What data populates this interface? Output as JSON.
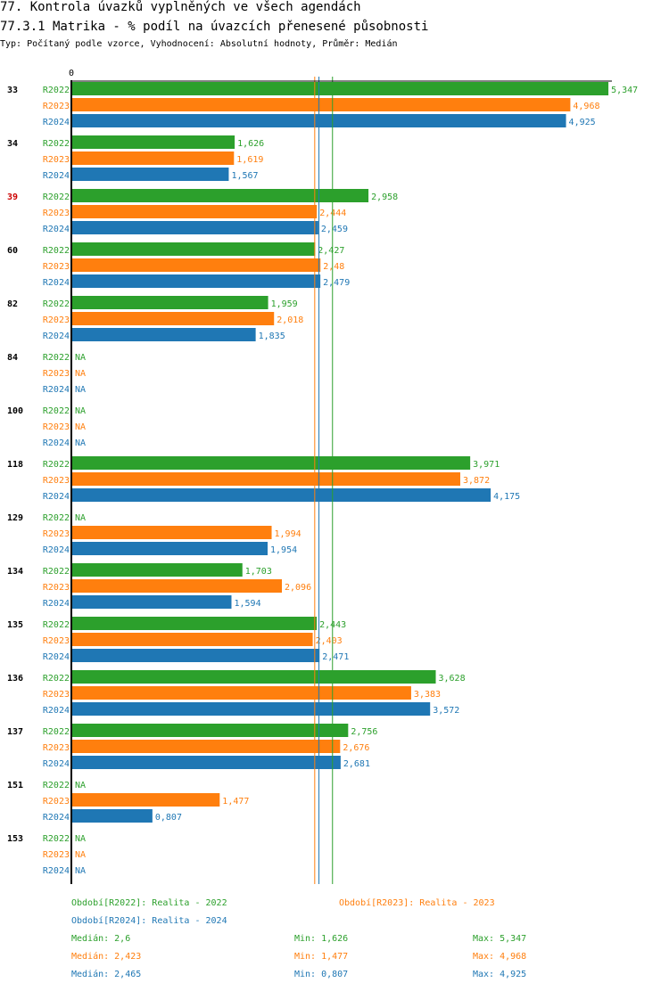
{
  "title": "77. Kontrola úvazků vyplněných ve všech agendách",
  "subtitle": "77.3.1 Matrika - % podíl na úvazcích přenesené působnosti",
  "meta": "Typ: Počítaný podle vzorce, Vyhodnocení: Absolutní hodnoty, Průměr: Medián",
  "colors": {
    "R2022": "#2ca02c",
    "R2023": "#ff7f0e",
    "R2024": "#1f77b4",
    "highlight": "#cc0000"
  },
  "chart_data": {
    "type": "bar",
    "orientation": "horizontal",
    "axis_zero_label": "0",
    "xlim": [
      0,
      5.5
    ],
    "highlighted_category": "39",
    "categories": [
      "33",
      "34",
      "39",
      "60",
      "82",
      "84",
      "100",
      "118",
      "129",
      "134",
      "135",
      "136",
      "137",
      "151",
      "153"
    ],
    "series": [
      {
        "name": "R2022",
        "values": [
          5.347,
          1.626,
          2.958,
          2.427,
          1.959,
          null,
          null,
          3.971,
          null,
          1.703,
          2.443,
          3.628,
          2.756,
          null,
          null
        ],
        "labels": [
          "5,347",
          "1,626",
          "2,958",
          "2,427",
          "1,959",
          "NA",
          "NA",
          "3,971",
          "NA",
          "1,703",
          "2,443",
          "3,628",
          "2,756",
          "NA",
          "NA"
        ],
        "median": 2.6
      },
      {
        "name": "R2023",
        "values": [
          4.968,
          1.619,
          2.444,
          2.48,
          2.018,
          null,
          null,
          3.872,
          1.994,
          2.096,
          2.403,
          3.383,
          2.676,
          1.477,
          null
        ],
        "labels": [
          "4,968",
          "1,619",
          "2,444",
          "2,48",
          "2,018",
          "NA",
          "NA",
          "3,872",
          "1,994",
          "2,096",
          "2,403",
          "3,383",
          "2,676",
          "1,477",
          "NA"
        ],
        "median": 2.423
      },
      {
        "name": "R2024",
        "values": [
          4.925,
          1.567,
          2.459,
          2.479,
          1.835,
          null,
          null,
          4.175,
          1.954,
          1.594,
          2.471,
          3.572,
          2.681,
          0.807,
          null
        ],
        "labels": [
          "4,925",
          "1,567",
          "2,459",
          "2,479",
          "1,835",
          "NA",
          "NA",
          "4,175",
          "1,954",
          "1,594",
          "2,471",
          "3,572",
          "2,681",
          "0,807",
          "NA"
        ],
        "median": 2.465
      }
    ]
  },
  "legend": {
    "periods": [
      {
        "text": "Období[R2022]: Realita - 2022"
      },
      {
        "text": "Období[R2023]: Realita - 2023"
      },
      {
        "text": "Období[R2024]: Realita - 2024"
      }
    ],
    "stats": [
      {
        "median": "Medián: 2,6",
        "min": "Min: 1,626",
        "max": "Max: 5,347"
      },
      {
        "median": "Medián: 2,423",
        "min": "Min: 1,477",
        "max": "Max: 4,968"
      },
      {
        "median": "Medián: 2,465",
        "min": "Min: 0,807",
        "max": "Max: 4,925"
      }
    ]
  }
}
